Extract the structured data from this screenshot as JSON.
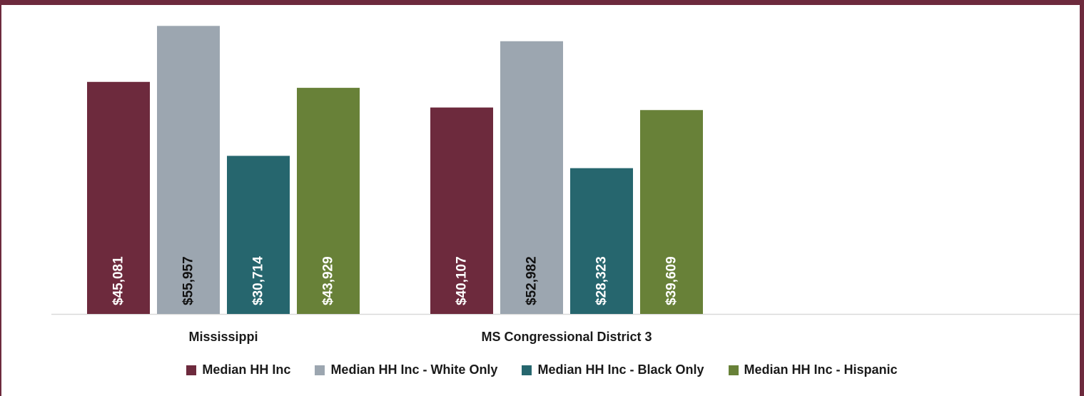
{
  "chart_data": {
    "type": "bar",
    "categories": [
      "Mississippi",
      "MS Congressional District 3"
    ],
    "series": [
      {
        "name": "Median HH Inc",
        "color": "#6d2a3d",
        "label_color": "#ffffff",
        "values": [
          45081,
          40107
        ],
        "labels": [
          "$45,081",
          "$40,107"
        ]
      },
      {
        "name": "Median HH Inc - White Only",
        "color": "#9ca6b0",
        "label_color": "#111111",
        "values": [
          55957,
          52982
        ],
        "labels": [
          "$55,957",
          "$52,982"
        ]
      },
      {
        "name": "Median HH Inc - Black Only",
        "color": "#26666e",
        "label_color": "#ffffff",
        "values": [
          30714,
          28323
        ],
        "labels": [
          "$30,714",
          "$28,323"
        ]
      },
      {
        "name": "Median HH Inc - Hispanic",
        "color": "#688138",
        "label_color": "#ffffff",
        "values": [
          43929,
          39609
        ],
        "labels": [
          "$43,929",
          "$39,609"
        ]
      }
    ],
    "ylim": [
      0,
      56000
    ],
    "legend_position": "bottom",
    "grid": false
  },
  "legend": {
    "items": [
      {
        "label": "Median HH Inc",
        "color": "#6d2a3d"
      },
      {
        "label": "Median HH Inc - White Only",
        "color": "#9ca6b0"
      },
      {
        "label": "Median HH Inc - Black Only",
        "color": "#26666e"
      },
      {
        "label": "Median HH Inc - Hispanic",
        "color": "#688138"
      }
    ]
  }
}
